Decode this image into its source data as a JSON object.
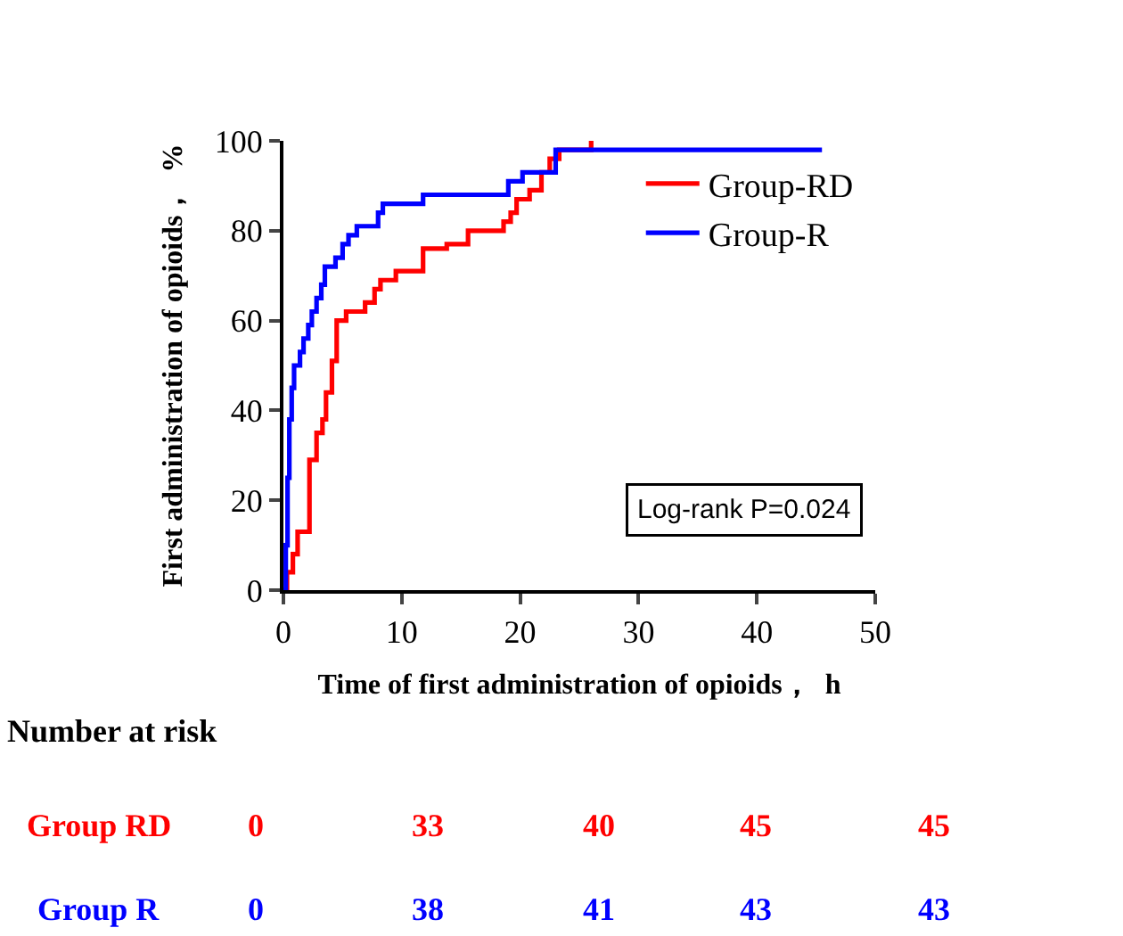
{
  "chart_data": {
    "type": "step",
    "xlabel": "Time of first administration of opioids，  h",
    "ylabel": "First administration of opioids，  %",
    "series": [
      {
        "name": "Group-RD",
        "color": "#ff0000",
        "x": [
          0,
          0.3,
          0.8,
          1.2,
          2.2,
          2.8,
          3.3,
          3.6,
          4.1,
          4.5,
          5.3,
          6.9,
          7.7,
          8.2,
          9.5,
          11.8,
          13.8,
          15.6,
          18.6,
          19.2,
          19.7,
          20.8,
          21.8,
          22.5,
          23.3,
          26
        ],
        "values": [
          0,
          4,
          8,
          13,
          29,
          35,
          38,
          44,
          51,
          60,
          62,
          64,
          67,
          69,
          71,
          76,
          77,
          80,
          82,
          84,
          87,
          89,
          93,
          96,
          98,
          100
        ]
      },
      {
        "name": "Group-R",
        "color": "#0000ff",
        "x": [
          0,
          0.2,
          0.35,
          0.5,
          0.7,
          0.9,
          1.4,
          1.7,
          2.1,
          2.4,
          2.8,
          3.2,
          3.5,
          4.4,
          5.0,
          5.5,
          6.2,
          8.0,
          8.4,
          11.8,
          19.0,
          20.2,
          23.0,
          45.5
        ],
        "values": [
          0,
          10,
          25,
          38,
          45,
          50,
          53,
          56,
          59,
          62,
          65,
          68,
          72,
          74,
          77,
          79,
          81,
          84,
          86,
          88,
          91,
          93,
          98,
          98
        ]
      }
    ],
    "xlim": [
      0,
      50
    ],
    "xticks": [
      0,
      10,
      20,
      30,
      40,
      50
    ],
    "ylim": [
      0,
      100
    ],
    "yticks": [
      0,
      20,
      40,
      60,
      80,
      100
    ],
    "legend": "top right",
    "marker": "none",
    "line_style": "solid",
    "annotations": [
      "Log-rank P=0.024",
      "Number at risk",
      "Group RD",
      "0",
      "33",
      "40",
      "45",
      "45",
      "Group R",
      "0",
      "38",
      "41",
      "43",
      "43"
    ]
  }
}
